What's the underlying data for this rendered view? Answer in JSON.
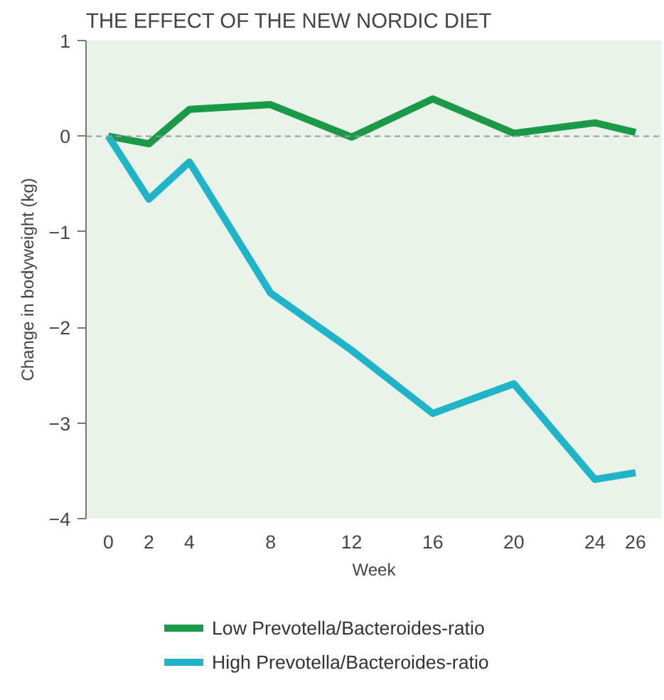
{
  "chart_data": {
    "type": "line",
    "title": "THE EFFECT OF THE NEW NORDIC DIET",
    "xlabel": "Week",
    "ylabel": "Change in bodyweight (kg)",
    "x": [
      0,
      2,
      4,
      8,
      12,
      16,
      20,
      24,
      26
    ],
    "series": [
      {
        "name": "Low Prevotella/Bacteroides-ratio",
        "color": "#1a9a48",
        "values": [
          0,
          -0.08,
          0.28,
          0.33,
          -0.01,
          0.39,
          0.03,
          0.14,
          0.04
        ]
      },
      {
        "name": "High Prevotella/Bacteroides-ratio",
        "color": "#1fb4c8",
        "values": [
          0,
          -0.66,
          -0.27,
          -1.64,
          -2.24,
          -2.9,
          -2.59,
          -3.59,
          -3.52
        ]
      }
    ],
    "xlim": [
      -1.1,
      27.3
    ],
    "ylim": [
      -4,
      1
    ],
    "xticks": [
      0,
      2,
      4,
      8,
      12,
      16,
      20,
      24,
      26
    ],
    "yticks": [
      -4,
      -3,
      -2,
      -1,
      0,
      1
    ],
    "ref_lines": [
      {
        "axis": "y",
        "value": 0,
        "color": "#999999",
        "line_style": "dashed"
      }
    ],
    "grid": false,
    "legend": "bottom",
    "marker": "none",
    "line_style": "solid"
  }
}
